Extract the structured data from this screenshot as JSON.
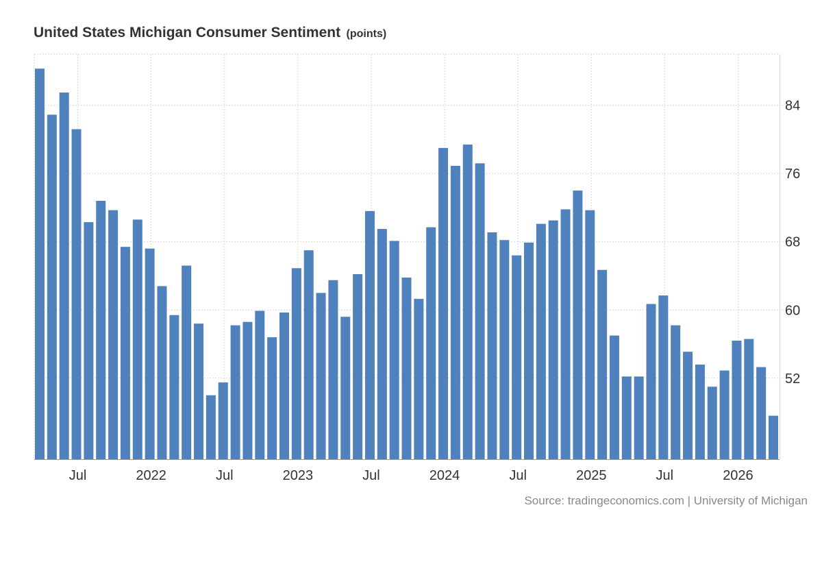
{
  "title": "United States Michigan Consumer Sentiment",
  "unit": "(points)",
  "source": "Source: tradingeconomics.com | University of Michigan",
  "colors": {
    "bar": "#4f81bd",
    "grid": "#d9d9d9",
    "axis": "#999999",
    "text": "#333333",
    "source": "#888888"
  },
  "chart_data": {
    "type": "bar",
    "title": "United States Michigan Consumer Sentiment",
    "ylabel": "points",
    "xlabel": "",
    "ylim": [
      42.5,
      90
    ],
    "grid": true,
    "y_axis_position": "right",
    "yticks": [
      52,
      60,
      68,
      76,
      84
    ],
    "xticks": [
      {
        "label": "Jul",
        "index": 3
      },
      {
        "label": "2022",
        "index": 9
      },
      {
        "label": "Jul",
        "index": 15
      },
      {
        "label": "2023",
        "index": 21
      },
      {
        "label": "Jul",
        "index": 27
      },
      {
        "label": "2024",
        "index": 33
      },
      {
        "label": "Jul",
        "index": 39
      },
      {
        "label": "2025",
        "index": 45
      },
      {
        "label": "Jul",
        "index": 51
      },
      {
        "label": "2026",
        "index": 57
      }
    ],
    "categories": [
      "2021-04",
      "2021-05",
      "2021-06",
      "2021-07",
      "2021-08",
      "2021-09",
      "2021-10",
      "2021-11",
      "2021-12",
      "2022-01",
      "2022-02",
      "2022-03",
      "2022-04",
      "2022-05",
      "2022-06",
      "2022-07",
      "2022-08",
      "2022-09",
      "2022-10",
      "2022-11",
      "2022-12",
      "2023-01",
      "2023-02",
      "2023-03",
      "2023-04",
      "2023-05",
      "2023-06",
      "2023-07",
      "2023-08",
      "2023-09",
      "2023-10",
      "2023-11",
      "2023-12",
      "2024-01",
      "2024-02",
      "2024-03",
      "2024-04",
      "2024-05",
      "2024-06",
      "2024-07",
      "2024-08",
      "2024-09",
      "2024-10",
      "2024-11",
      "2024-12",
      "2025-01",
      "2025-02",
      "2025-03",
      "2025-04",
      "2025-05",
      "2025-06",
      "2025-07",
      "2025-08",
      "2025-09",
      "2025-10",
      "2025-11",
      "2025-12",
      "2026-01",
      "2026-02",
      "2026-03",
      "2026-04"
    ],
    "values": [
      88.3,
      82.9,
      85.5,
      81.2,
      70.3,
      72.8,
      71.7,
      67.4,
      70.6,
      67.2,
      62.8,
      59.4,
      65.2,
      58.4,
      50.0,
      51.5,
      58.2,
      58.6,
      59.9,
      56.8,
      59.7,
      64.9,
      67.0,
      62.0,
      63.5,
      59.2,
      64.2,
      71.6,
      69.5,
      68.1,
      63.8,
      61.3,
      69.7,
      79.0,
      76.9,
      79.4,
      77.2,
      69.1,
      68.2,
      66.4,
      67.9,
      70.1,
      70.5,
      71.8,
      74.0,
      71.7,
      64.7,
      57.0,
      52.2,
      52.2,
      60.7,
      61.7,
      58.2,
      55.1,
      53.6,
      51.0,
      52.9,
      56.4,
      56.6,
      53.3,
      47.6
    ]
  }
}
